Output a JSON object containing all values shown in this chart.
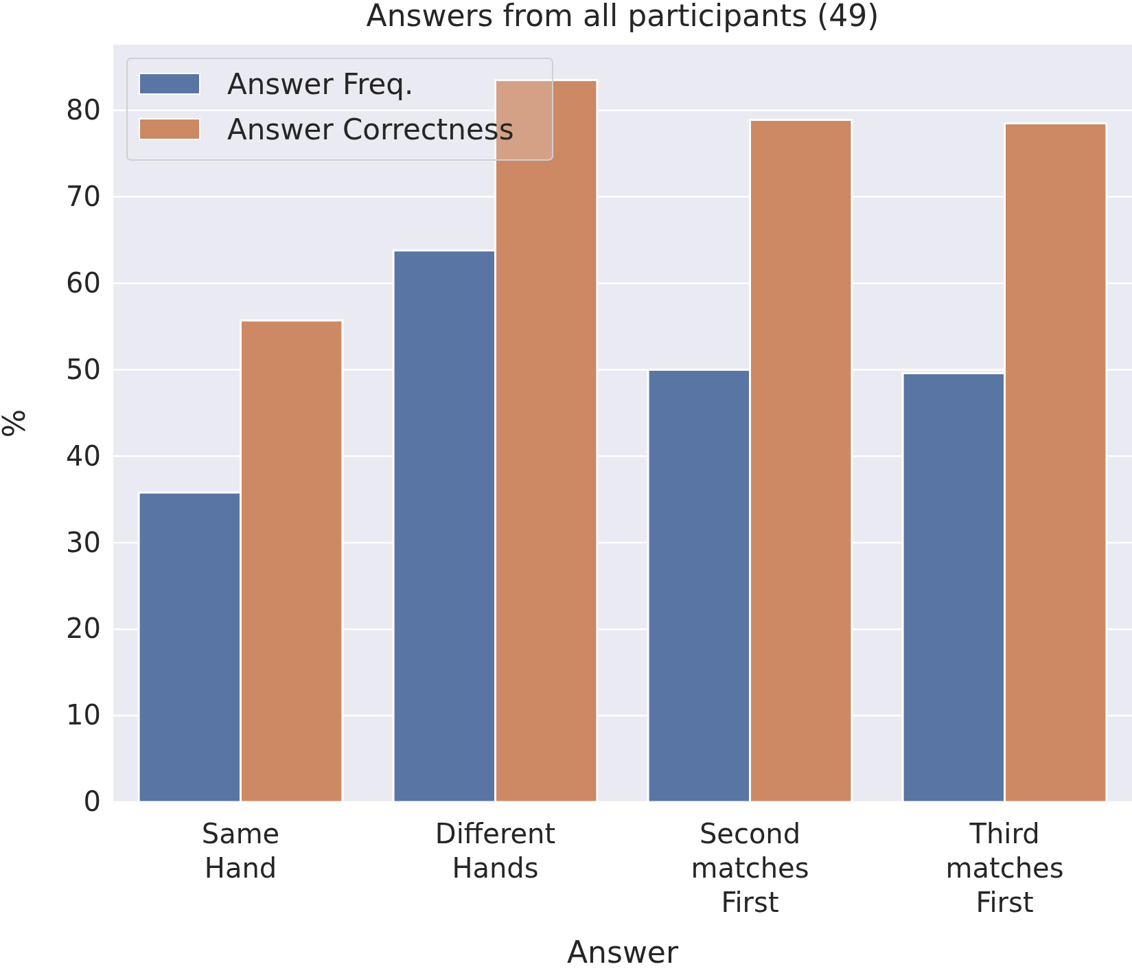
{
  "chart_data": {
    "type": "bar",
    "title": "Answers from all participants (49)",
    "xlabel": "Answer",
    "ylabel": "%",
    "categories": [
      "Same Hand",
      "Different Hands",
      "Second matches First",
      "Third matches First"
    ],
    "series": [
      {
        "name": "Answer Freq.",
        "color": "#5975a4",
        "values": [
          35.8,
          63.8,
          50.0,
          49.6
        ]
      },
      {
        "name": "Answer Correctness",
        "color": "#cc8963",
        "values": [
          55.7,
          83.5,
          78.9,
          78.5
        ]
      }
    ],
    "ylim": [
      0,
      87.6
    ],
    "yticks": [
      0,
      10,
      20,
      30,
      40,
      50,
      60,
      70,
      80
    ],
    "grid": true,
    "legend": "top left"
  }
}
